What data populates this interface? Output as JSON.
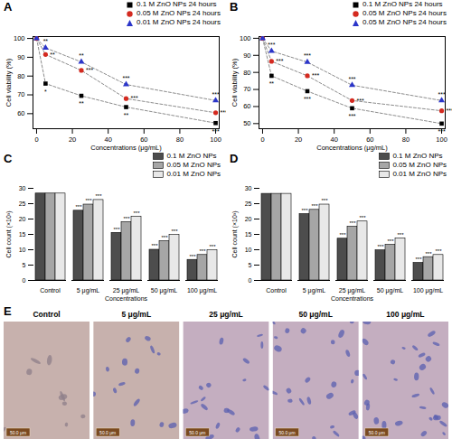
{
  "chart_data": [
    {
      "type": "line",
      "title": "A",
      "x_label": "Concentrations (μg/mL)",
      "y_label": "Cell viability (%)",
      "x": [
        0,
        5,
        25,
        50,
        100
      ],
      "xlim": [
        -2,
        102
      ],
      "xticks": [
        0,
        20,
        40,
        60,
        80,
        100
      ],
      "ylim": [
        52,
        101
      ],
      "yticks": [
        60,
        70,
        80,
        90,
        100
      ],
      "line_style": "dashed",
      "series": [
        {
          "name": "0.1 M ZnO NPs 24 hours",
          "color": "#000000",
          "marker": "square",
          "values": [
            100,
            76,
            69.5,
            63.5,
            55
          ],
          "significance": [
            null,
            "*",
            "**",
            "**",
            "***"
          ]
        },
        {
          "name": "0.05 M ZnO NPs 24 hours",
          "color": "#d42a20",
          "marker": "circle",
          "values": [
            100,
            91.5,
            83,
            68,
            60.5
          ],
          "significance": [
            null,
            "**",
            "***",
            "***",
            "***"
          ]
        },
        {
          "name": "0.01 M ZnO NPs 24 hours",
          "color": "#2b35c9",
          "marker": "triangle",
          "values": [
            100,
            95,
            87.5,
            75.5,
            67
          ],
          "significance": [
            null,
            "**",
            "**",
            "***",
            "***"
          ]
        }
      ]
    },
    {
      "type": "line",
      "title": "B",
      "x_label": "Concentrations (μg/mL)",
      "y_label": "Cell viability (%)",
      "x": [
        0,
        5,
        25,
        50,
        100
      ],
      "xlim": [
        -2,
        102
      ],
      "xticks": [
        0,
        20,
        40,
        60,
        80,
        100
      ],
      "ylim": [
        47,
        101
      ],
      "yticks": [
        50,
        60,
        70,
        80,
        90,
        100
      ],
      "line_style": "dashed",
      "series": [
        {
          "name": "0.1 M ZnO NPs 24 hours",
          "color": "#000000",
          "marker": "square",
          "values": [
            100,
            78,
            69,
            59,
            50
          ],
          "significance": [
            null,
            "**",
            "***",
            "***",
            "***"
          ]
        },
        {
          "name": "0.05 M ZnO NPs 24 hours",
          "color": "#d42a20",
          "marker": "circle",
          "values": [
            100,
            86.5,
            78,
            63.5,
            57.5
          ],
          "significance": [
            null,
            "***",
            "***",
            "***",
            "***"
          ]
        },
        {
          "name": "0.05 M ZnO NPs 24 hours",
          "color": "#2b35c9",
          "marker": "triangle",
          "values": [
            100,
            92.5,
            86,
            72.5,
            63.5
          ],
          "significance": [
            null,
            "***",
            "***",
            "***",
            "***"
          ]
        }
      ]
    },
    {
      "type": "bar",
      "title": "C",
      "x_label": "Concentrations",
      "y_label": "Cell count (×10³)",
      "categories": [
        "Control",
        "5 μg/mL",
        "25 μg/mL",
        "50 μg/mL",
        "100 μg/mL"
      ],
      "ylim": [
        0,
        30
      ],
      "yticks": [
        0,
        5,
        10,
        15,
        20,
        25,
        30
      ],
      "series": [
        {
          "name": "0.1 M ZnO NPs",
          "color": "#4d4d4d",
          "values": [
            28.3,
            22.7,
            15.5,
            10,
            6.7
          ],
          "significance": [
            null,
            "***",
            "***",
            "***",
            "***"
          ]
        },
        {
          "name": "0.05 M ZnO NPs",
          "color": "#a6a6a6",
          "values": [
            28.3,
            24.7,
            19,
            12.8,
            8.3
          ],
          "significance": [
            null,
            "***",
            "***",
            "***",
            "***"
          ]
        },
        {
          "name": "0.01 M ZnO NPs",
          "color": "#e8e8e8",
          "values": [
            28.3,
            26.2,
            20.8,
            14.8,
            9.8
          ],
          "significance": [
            null,
            "***",
            "***",
            "***",
            "***"
          ]
        }
      ]
    },
    {
      "type": "bar",
      "title": "D",
      "x_label": "Concentrations",
      "y_label": "Cell count (×10³)",
      "categories": [
        "Control",
        "5 μg/mL",
        "25 μg/mL",
        "50 μg/mL",
        "100 μg/mL"
      ],
      "ylim": [
        0,
        30
      ],
      "yticks": [
        0,
        5,
        10,
        15,
        20,
        25,
        30
      ],
      "series": [
        {
          "name": "0.1 M ZnO NPs",
          "color": "#4d4d4d",
          "values": [
            28.2,
            21.6,
            13.6,
            9.8,
            5.7
          ],
          "significance": [
            null,
            "***",
            "***",
            "***",
            "***"
          ]
        },
        {
          "name": "0.05 M ZnO NPs",
          "color": "#a6a6a6",
          "values": [
            28.2,
            23,
            17.5,
            11.6,
            7.6
          ],
          "significance": [
            null,
            "***",
            "***",
            "***",
            "***"
          ]
        },
        {
          "name": "0.01 M ZnO NPs",
          "color": "#e8e8e8",
          "values": [
            28.2,
            24.7,
            19.2,
            13.7,
            8.3
          ],
          "significance": [
            null,
            "***",
            "***",
            "***",
            "***"
          ]
        }
      ]
    },
    {
      "type": "images",
      "title": "E",
      "categories": [
        "Control",
        "5 μg/mL",
        "25 μg/mL",
        "50 μg/mL",
        "100 μg/mL"
      ],
      "scale_bar": "50.0 μm"
    }
  ]
}
